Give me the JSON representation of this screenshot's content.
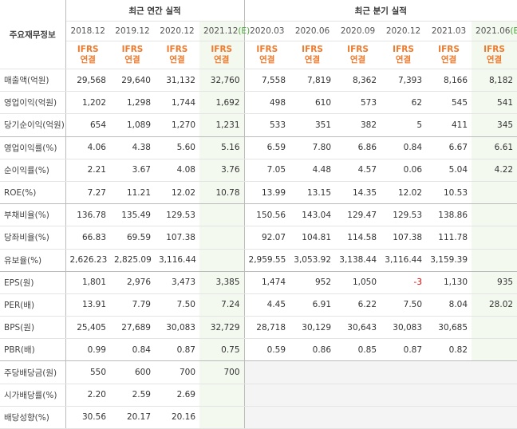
{
  "table": {
    "corner": "주요재무정보",
    "groups": [
      "최근 연간 실적",
      "최근 분기 실적"
    ],
    "periods": [
      "2018.12",
      "2019.12",
      "2020.12",
      "2021.12",
      "2020.03",
      "2020.06",
      "2020.09",
      "2020.12",
      "2021.03",
      "2021.06"
    ],
    "estimate_marks": [
      null,
      null,
      null,
      "(E)",
      null,
      null,
      null,
      null,
      null,
      "(E)"
    ],
    "basis": [
      {
        "top": "IFRS",
        "bottom": "연결"
      },
      {
        "top": "IFRS",
        "bottom": "연결"
      },
      {
        "top": "IFRS",
        "bottom": "연결"
      },
      {
        "top": "IFRS",
        "bottom": "연결"
      },
      {
        "top": "IFRS",
        "bottom": "연결"
      },
      {
        "top": "IFRS",
        "bottom": "연결"
      },
      {
        "top": "IFRS",
        "bottom": "연결"
      },
      {
        "top": "IFRS",
        "bottom": "연결"
      },
      {
        "top": "IFRS",
        "bottom": "연결"
      },
      {
        "top": "IFRS",
        "bottom": "연결"
      }
    ],
    "rows": [
      {
        "label": "매출액(억원)",
        "cells": [
          "29,568",
          "29,640",
          "31,132",
          "32,760",
          "7,558",
          "7,819",
          "8,362",
          "7,393",
          "8,166",
          "8,182"
        ]
      },
      {
        "label": "영업이익(억원)",
        "cells": [
          "1,202",
          "1,298",
          "1,744",
          "1,692",
          "498",
          "610",
          "573",
          "62",
          "545",
          "541"
        ]
      },
      {
        "label": "당기순이익(억원)",
        "cells": [
          "654",
          "1,089",
          "1,270",
          "1,231",
          "533",
          "351",
          "382",
          "5",
          "411",
          "345"
        ]
      },
      {
        "label": "영업이익률(%)",
        "cells": [
          "4.06",
          "4.38",
          "5.60",
          "5.16",
          "6.59",
          "7.80",
          "6.86",
          "0.84",
          "6.67",
          "6.61"
        ]
      },
      {
        "label": "순이익률(%)",
        "cells": [
          "2.21",
          "3.67",
          "4.08",
          "3.76",
          "7.05",
          "4.48",
          "4.57",
          "0.06",
          "5.04",
          "4.22"
        ]
      },
      {
        "label": "ROE(%)",
        "cells": [
          "7.27",
          "11.21",
          "12.02",
          "10.78",
          "13.99",
          "13.15",
          "14.35",
          "12.02",
          "10.53",
          null
        ]
      },
      {
        "label": "부채비율(%)",
        "cells": [
          "136.78",
          "135.49",
          "129.53",
          null,
          "150.56",
          "143.04",
          "129.47",
          "129.53",
          "138.86",
          null
        ]
      },
      {
        "label": "당좌비율(%)",
        "cells": [
          "66.83",
          "69.59",
          "107.38",
          null,
          "92.07",
          "104.81",
          "114.58",
          "107.38",
          "111.78",
          null
        ]
      },
      {
        "label": "유보율(%)",
        "cells": [
          "2,626.23",
          "2,825.09",
          "3,116.44",
          null,
          "2,959.55",
          "3,053.92",
          "3,138.44",
          "3,116.44",
          "3,159.39",
          null
        ]
      },
      {
        "label": "EPS(원)",
        "cells": [
          "1,801",
          "2,976",
          "3,473",
          "3,385",
          "1,474",
          "952",
          "1,050",
          "-3",
          "1,130",
          "935"
        ]
      },
      {
        "label": "PER(배)",
        "cells": [
          "13.91",
          "7.79",
          "7.50",
          "7.24",
          "4.45",
          "6.91",
          "6.22",
          "7.50",
          "8.04",
          "28.02"
        ]
      },
      {
        "label": "BPS(원)",
        "cells": [
          "25,405",
          "27,689",
          "30,083",
          "32,729",
          "28,718",
          "30,129",
          "30,643",
          "30,083",
          "30,685",
          null
        ]
      },
      {
        "label": "PBR(배)",
        "cells": [
          "0.99",
          "0.84",
          "0.87",
          "0.75",
          "0.59",
          "0.86",
          "0.85",
          "0.87",
          "0.82",
          null
        ]
      },
      {
        "label": "주당배당금(원)",
        "cells": [
          "550",
          "600",
          "700",
          "700",
          null,
          null,
          null,
          null,
          null,
          null
        ]
      },
      {
        "label": "시가배당률(%)",
        "cells": [
          "2.20",
          "2.59",
          "2.69",
          null,
          null,
          null,
          null,
          null,
          null,
          null
        ]
      },
      {
        "label": "배당성향(%)",
        "cells": [
          "30.56",
          "20.17",
          "20.16",
          null,
          null,
          null,
          null,
          null,
          null,
          null
        ]
      }
    ]
  }
}
